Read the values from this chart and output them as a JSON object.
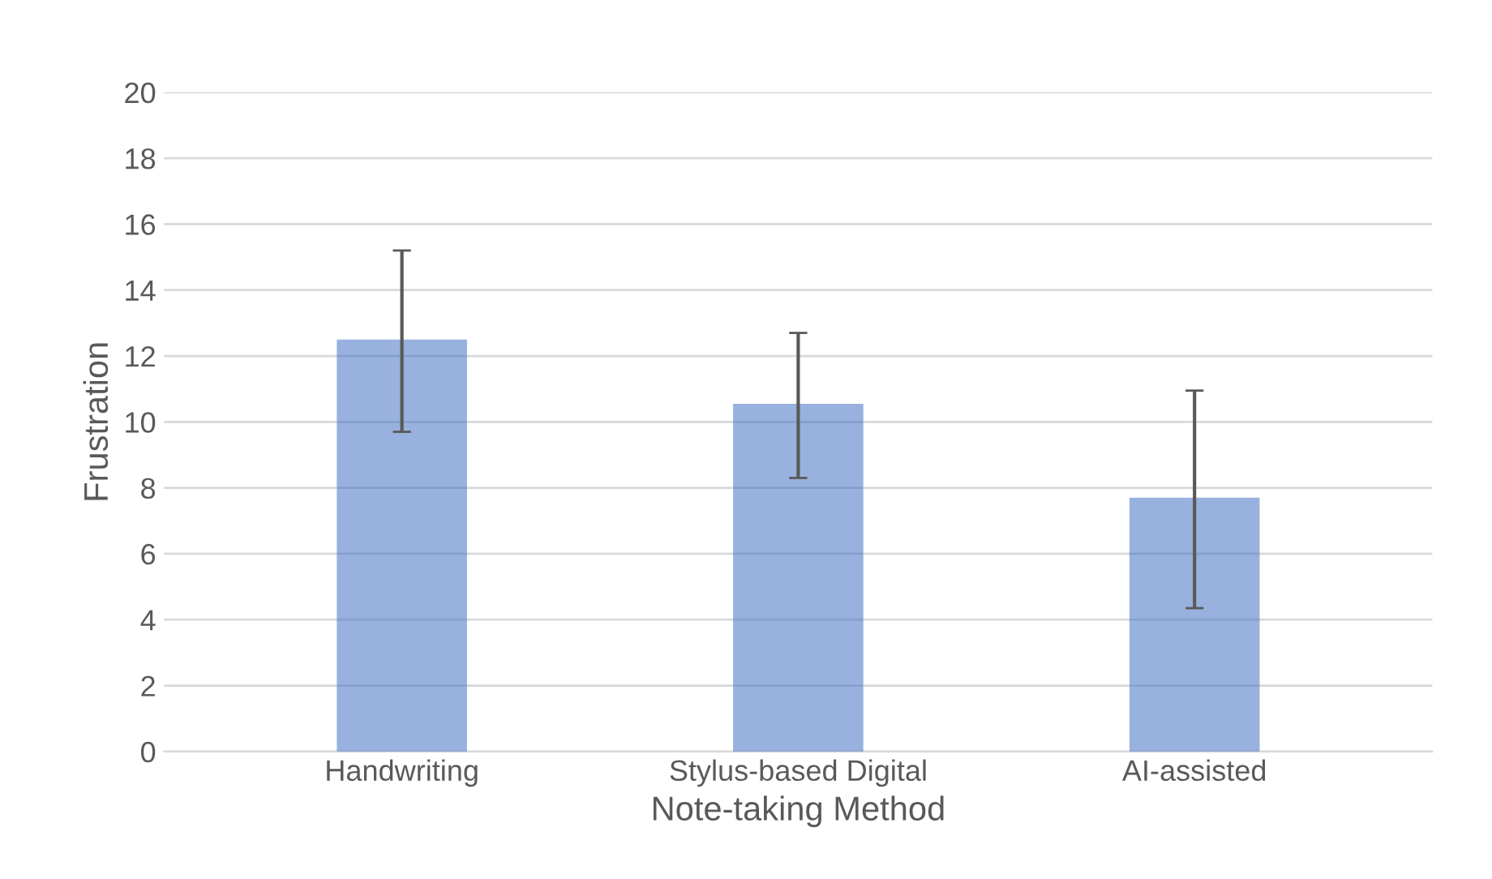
{
  "chart_data": {
    "type": "bar",
    "xlabel": "Note-taking Method",
    "ylabel": "Frustration",
    "categories": [
      "Handwriting",
      "Stylus-based Digital",
      "AI-assisted"
    ],
    "values": [
      12.45,
      10.5,
      7.65
    ],
    "errors": [
      2.75,
      2.2,
      3.3
    ],
    "color": "#4472c4",
    "ylim": [
      0,
      20
    ],
    "yticks": [
      0,
      2,
      4,
      6,
      8,
      10,
      12,
      14,
      16,
      18,
      20
    ],
    "grid": "y"
  }
}
